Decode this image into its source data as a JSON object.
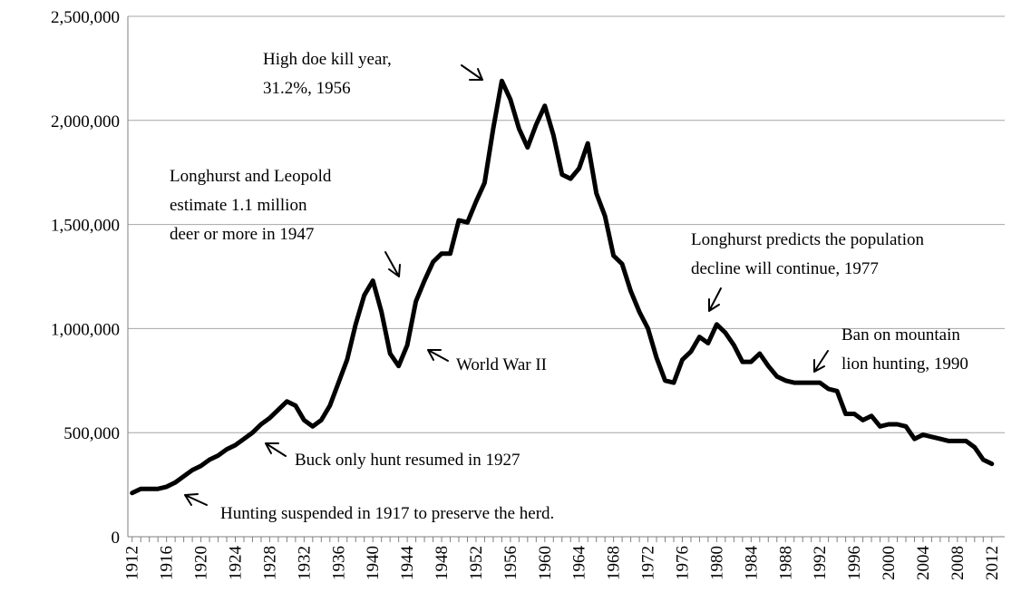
{
  "chart_data": {
    "type": "line",
    "title": "",
    "xlabel": "",
    "ylabel": "",
    "ylim": [
      0,
      2500000
    ],
    "yticks": [
      "0",
      "500,000",
      "1,000,000",
      "1,500,000",
      "2,000,000",
      "2,500,000"
    ],
    "xticks": [
      "1912",
      "1916",
      "1920",
      "1924",
      "1928",
      "1932",
      "1936",
      "1940",
      "1944",
      "1948",
      "1952",
      "1956",
      "1960",
      "1964",
      "1968",
      "1972",
      "1976",
      "1980",
      "1984",
      "1988",
      "1992",
      "1996",
      "2000",
      "2004",
      "2008",
      "2012"
    ],
    "grid": true,
    "x": [
      1912,
      1913,
      1914,
      1915,
      1916,
      1917,
      1918,
      1919,
      1920,
      1921,
      1922,
      1923,
      1924,
      1925,
      1926,
      1927,
      1928,
      1929,
      1930,
      1931,
      1932,
      1933,
      1934,
      1935,
      1936,
      1937,
      1938,
      1939,
      1940,
      1941,
      1942,
      1943,
      1944,
      1945,
      1946,
      1947,
      1948,
      1949,
      1950,
      1951,
      1952,
      1953,
      1954,
      1955,
      1956,
      1957,
      1958,
      1959,
      1960,
      1961,
      1962,
      1963,
      1964,
      1965,
      1966,
      1967,
      1968,
      1969,
      1970,
      1971,
      1972,
      1973,
      1974,
      1975,
      1976,
      1977,
      1978,
      1979,
      1980,
      1981,
      1982,
      1983,
      1984,
      1985,
      1986,
      1987,
      1988,
      1989,
      1990,
      1991,
      1992,
      1993,
      1994,
      1995,
      1996,
      1997,
      1998,
      1999,
      2000,
      2001,
      2002,
      2003,
      2004,
      2005,
      2006,
      2007,
      2008,
      2009,
      2010,
      2011,
      2012
    ],
    "series": [
      {
        "values": [
          210000,
          230000,
          230000,
          230000,
          240000,
          260000,
          290000,
          320000,
          340000,
          370000,
          390000,
          420000,
          440000,
          470000,
          500000,
          540000,
          570000,
          610000,
          650000,
          630000,
          560000,
          530000,
          560000,
          630000,
          740000,
          850000,
          1020000,
          1160000,
          1230000,
          1080000,
          880000,
          820000,
          920000,
          1130000,
          1230000,
          1320000,
          1360000,
          1360000,
          1520000,
          1510000,
          1610000,
          1700000,
          1960000,
          2190000,
          2100000,
          1960000,
          1870000,
          1980000,
          2070000,
          1930000,
          1740000,
          1720000,
          1770000,
          1890000,
          1650000,
          1540000,
          1350000,
          1310000,
          1180000,
          1080000,
          1000000,
          860000,
          750000,
          740000,
          850000,
          890000,
          960000,
          930000,
          1020000,
          980000,
          920000,
          840000,
          840000,
          880000,
          820000,
          770000,
          750000,
          740000,
          740000,
          740000,
          740000,
          710000,
          700000,
          590000,
          590000,
          560000,
          580000,
          530000,
          540000,
          540000,
          530000,
          470000,
          490000,
          480000,
          470000,
          460000,
          460000,
          460000,
          430000,
          370000,
          350000
        ]
      }
    ],
    "annotations": [
      {
        "lines": [
          "High doe kill year,",
          "31.2%, 1956"
        ]
      },
      {
        "lines": [
          "Longhurst and Leopold",
          "estimate 1.1 million",
          "deer or more in 1947"
        ]
      },
      {
        "lines": [
          "Longhurst predicts the population",
          "decline will continue, 1977"
        ]
      },
      {
        "lines": [
          "Ban on mountain",
          "lion hunting, 1990"
        ]
      },
      {
        "lines": [
          "World War II"
        ]
      },
      {
        "lines": [
          "Buck only hunt resumed in 1927"
        ]
      },
      {
        "lines": [
          "Hunting suspended in 1917 to preserve the herd."
        ]
      }
    ]
  }
}
